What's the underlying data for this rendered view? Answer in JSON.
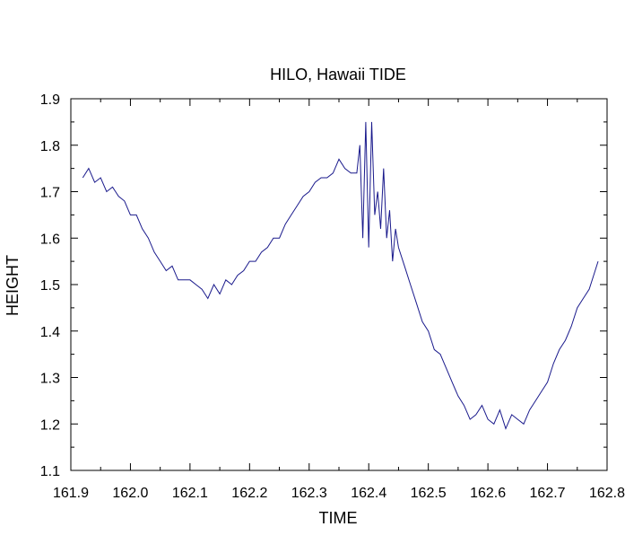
{
  "chart_data": {
    "type": "line",
    "title": "HILO, Hawaii TIDE",
    "xlabel": "TIME",
    "ylabel": "HEIGHT",
    "xlim": [
      161.9,
      162.8
    ],
    "ylim": [
      1.1,
      1.9
    ],
    "xticks": [
      "161.9",
      "162.0",
      "162.1",
      "162.2",
      "162.3",
      "162.4",
      "162.5",
      "162.6",
      "162.7",
      "162.8"
    ],
    "yticks": [
      "1.1",
      "1.2",
      "1.3",
      "1.4",
      "1.5",
      "1.6",
      "1.7",
      "1.8",
      "1.9"
    ],
    "grid": false,
    "series": [
      {
        "color": "#1a1a8c",
        "x": [
          161.92,
          161.93,
          161.94,
          161.95,
          161.96,
          161.97,
          161.98,
          161.99,
          162.0,
          162.01,
          162.02,
          162.03,
          162.04,
          162.05,
          162.06,
          162.07,
          162.08,
          162.09,
          162.1,
          162.11,
          162.12,
          162.13,
          162.14,
          162.15,
          162.16,
          162.17,
          162.18,
          162.19,
          162.2,
          162.21,
          162.22,
          162.23,
          162.24,
          162.25,
          162.26,
          162.27,
          162.28,
          162.29,
          162.3,
          162.31,
          162.32,
          162.33,
          162.34,
          162.35,
          162.36,
          162.37,
          162.38,
          162.385,
          162.39,
          162.395,
          162.4,
          162.405,
          162.41,
          162.415,
          162.42,
          162.425,
          162.43,
          162.435,
          162.44,
          162.445,
          162.45,
          162.46,
          162.47,
          162.48,
          162.49,
          162.5,
          162.51,
          162.52,
          162.53,
          162.54,
          162.55,
          162.56,
          162.57,
          162.58,
          162.59,
          162.6,
          162.61,
          162.62,
          162.63,
          162.64,
          162.65,
          162.66,
          162.67,
          162.68,
          162.69,
          162.7,
          162.71,
          162.72,
          162.73,
          162.74,
          162.75,
          162.76,
          162.77,
          162.78,
          162.785
        ],
        "y": [
          1.73,
          1.75,
          1.72,
          1.73,
          1.7,
          1.71,
          1.69,
          1.68,
          1.65,
          1.65,
          1.62,
          1.6,
          1.57,
          1.55,
          1.53,
          1.54,
          1.51,
          1.51,
          1.51,
          1.5,
          1.49,
          1.47,
          1.5,
          1.48,
          1.51,
          1.5,
          1.52,
          1.53,
          1.55,
          1.55,
          1.57,
          1.58,
          1.6,
          1.6,
          1.63,
          1.65,
          1.67,
          1.69,
          1.7,
          1.72,
          1.73,
          1.73,
          1.74,
          1.77,
          1.75,
          1.74,
          1.74,
          1.8,
          1.6,
          1.85,
          1.58,
          1.85,
          1.65,
          1.7,
          1.62,
          1.75,
          1.6,
          1.66,
          1.55,
          1.62,
          1.58,
          1.54,
          1.5,
          1.46,
          1.42,
          1.4,
          1.36,
          1.35,
          1.32,
          1.29,
          1.26,
          1.24,
          1.21,
          1.22,
          1.24,
          1.21,
          1.2,
          1.23,
          1.19,
          1.22,
          1.21,
          1.2,
          1.23,
          1.25,
          1.27,
          1.29,
          1.33,
          1.36,
          1.38,
          1.41,
          1.45,
          1.47,
          1.49,
          1.53,
          1.55
        ]
      }
    ]
  }
}
